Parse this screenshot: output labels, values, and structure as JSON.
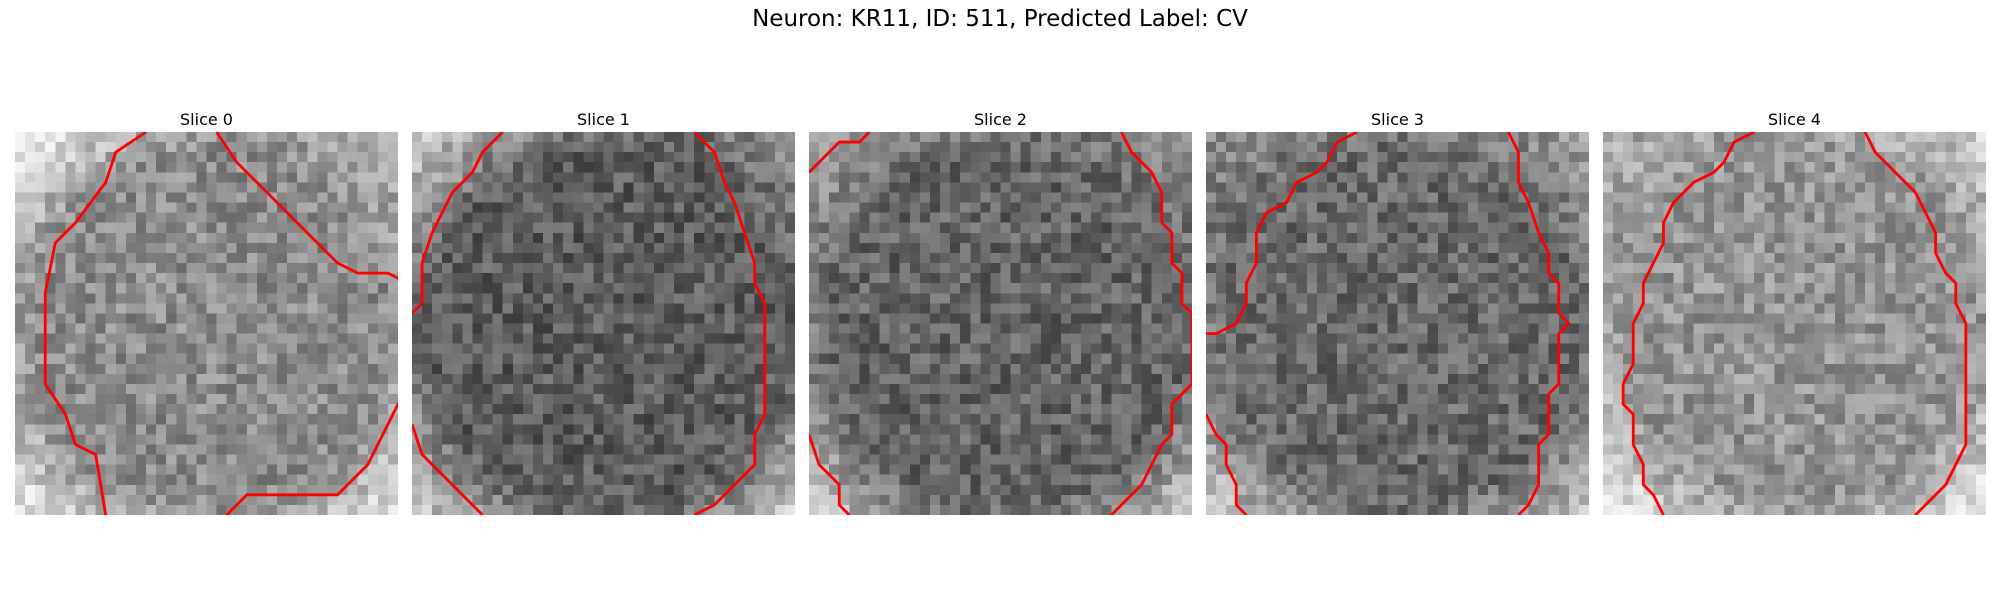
{
  "figure": {
    "title": "Neuron: KR11, ID: 511, Predicted Label: CV"
  },
  "panels": [
    {
      "title": "Slice 0",
      "mean_intensity": 140,
      "bright_corners": [
        0.9,
        0.4,
        0.8,
        0.85
      ],
      "contours": [
        [
          [
            13,
            0
          ],
          [
            10,
            2
          ],
          [
            9,
            5
          ],
          [
            6,
            9
          ],
          [
            4,
            11
          ],
          [
            3,
            16
          ],
          [
            3,
            25
          ],
          [
            5,
            28
          ],
          [
            6,
            31
          ],
          [
            8,
            32
          ],
          [
            9,
            38
          ]
        ],
        [
          [
            20,
            0
          ],
          [
            22,
            3
          ],
          [
            24,
            5
          ],
          [
            26,
            7
          ],
          [
            28,
            9
          ],
          [
            30,
            11
          ],
          [
            32,
            13
          ],
          [
            34,
            14
          ],
          [
            37,
            14
          ],
          [
            39,
            15
          ]
        ],
        [
          [
            21,
            38
          ],
          [
            23,
            36
          ],
          [
            32,
            36
          ],
          [
            35,
            33
          ],
          [
            36,
            31
          ],
          [
            37,
            29
          ],
          [
            38,
            27
          ],
          [
            39,
            26
          ]
        ]
      ]
    },
    {
      "title": "Slice 1",
      "mean_intensity": 92,
      "bright_corners": [
        0.9,
        0.4,
        0.9,
        0.95
      ],
      "contours": [
        [
          [
            9,
            0
          ],
          [
            7,
            2
          ],
          [
            6,
            4
          ],
          [
            4,
            6
          ],
          [
            3,
            8
          ],
          [
            2,
            10
          ],
          [
            1,
            13
          ],
          [
            1,
            17
          ],
          [
            0,
            18
          ]
        ],
        [
          [
            28,
            0
          ],
          [
            30,
            2
          ],
          [
            31,
            5
          ],
          [
            32,
            7
          ],
          [
            33,
            10
          ],
          [
            34,
            13
          ],
          [
            34,
            15
          ],
          [
            35,
            17
          ],
          [
            35,
            28
          ],
          [
            34,
            30
          ],
          [
            34,
            33
          ],
          [
            32,
            35
          ],
          [
            30,
            37
          ],
          [
            28,
            38
          ]
        ],
        [
          [
            0,
            29
          ],
          [
            1,
            32
          ],
          [
            3,
            34
          ],
          [
            5,
            36
          ],
          [
            7,
            38
          ]
        ]
      ]
    },
    {
      "title": "Slice 2",
      "mean_intensity": 100,
      "bright_corners": [
        0.6,
        0.4,
        0.9,
        0.9
      ],
      "contours": [
        [
          [
            0,
            4
          ],
          [
            3,
            1
          ],
          [
            5,
            1
          ],
          [
            6,
            0
          ]
        ],
        [
          [
            31,
            0
          ],
          [
            32,
            2
          ],
          [
            34,
            4
          ],
          [
            35,
            6
          ],
          [
            35,
            9
          ],
          [
            36,
            10
          ],
          [
            36,
            13
          ],
          [
            37,
            14
          ],
          [
            37,
            17
          ],
          [
            38,
            18
          ],
          [
            38,
            25
          ],
          [
            37,
            26
          ],
          [
            36,
            27
          ],
          [
            36,
            30
          ],
          [
            35,
            31
          ],
          [
            34,
            33
          ],
          [
            33,
            35
          ],
          [
            31,
            37
          ],
          [
            30,
            38
          ]
        ],
        [
          [
            0,
            30
          ],
          [
            1,
            33
          ],
          [
            2,
            34
          ],
          [
            3,
            35
          ],
          [
            3,
            37
          ],
          [
            4,
            38
          ]
        ]
      ]
    },
    {
      "title": "Slice 3",
      "mean_intensity": 105,
      "bright_corners": [
        0.3,
        0.5,
        0.85,
        0.85
      ],
      "contours": [
        [
          [
            15,
            0
          ],
          [
            13,
            1
          ],
          [
            12,
            3
          ],
          [
            11,
            4
          ],
          [
            9,
            5
          ],
          [
            8,
            7
          ],
          [
            6,
            8
          ],
          [
            5,
            10
          ],
          [
            5,
            13
          ],
          [
            4,
            15
          ],
          [
            4,
            17
          ],
          [
            3,
            19
          ],
          [
            1,
            20
          ],
          [
            0,
            20
          ]
        ],
        [
          [
            30,
            0
          ],
          [
            31,
            2
          ],
          [
            31,
            5
          ],
          [
            32,
            7
          ],
          [
            33,
            10
          ],
          [
            34,
            12
          ],
          [
            34,
            14
          ],
          [
            35,
            15
          ],
          [
            35,
            18
          ],
          [
            36,
            19
          ],
          [
            35,
            20
          ],
          [
            35,
            25
          ],
          [
            34,
            26
          ],
          [
            34,
            30
          ],
          [
            33,
            31
          ],
          [
            33,
            35
          ],
          [
            32,
            37
          ],
          [
            31,
            38
          ]
        ],
        [
          [
            0,
            28
          ],
          [
            1,
            30
          ],
          [
            2,
            31
          ],
          [
            2,
            33
          ],
          [
            3,
            35
          ],
          [
            3,
            37
          ],
          [
            4,
            38
          ]
        ]
      ]
    },
    {
      "title": "Slice 4",
      "mean_intensity": 148,
      "bright_corners": [
        0.2,
        0.5,
        0.8,
        0.85
      ],
      "contours": [
        [
          [
            15,
            0
          ],
          [
            13,
            1
          ],
          [
            12,
            3
          ],
          [
            11,
            4
          ],
          [
            9,
            5
          ],
          [
            7,
            7
          ],
          [
            6,
            9
          ],
          [
            6,
            11
          ],
          [
            5,
            13
          ],
          [
            4,
            15
          ],
          [
            4,
            17
          ],
          [
            3,
            19
          ],
          [
            3,
            23
          ],
          [
            2,
            25
          ],
          [
            2,
            27
          ],
          [
            3,
            28
          ],
          [
            3,
            31
          ],
          [
            4,
            33
          ],
          [
            4,
            35
          ],
          [
            5,
            36
          ],
          [
            6,
            38
          ]
        ],
        [
          [
            26,
            0
          ],
          [
            27,
            2
          ],
          [
            29,
            4
          ],
          [
            31,
            6
          ],
          [
            32,
            8
          ],
          [
            33,
            10
          ],
          [
            33,
            12
          ],
          [
            34,
            14
          ],
          [
            35,
            15
          ],
          [
            35,
            17
          ],
          [
            36,
            19
          ],
          [
            36,
            31
          ],
          [
            35,
            33
          ],
          [
            34,
            35
          ],
          [
            32,
            37
          ],
          [
            31,
            38
          ]
        ]
      ]
    }
  ]
}
